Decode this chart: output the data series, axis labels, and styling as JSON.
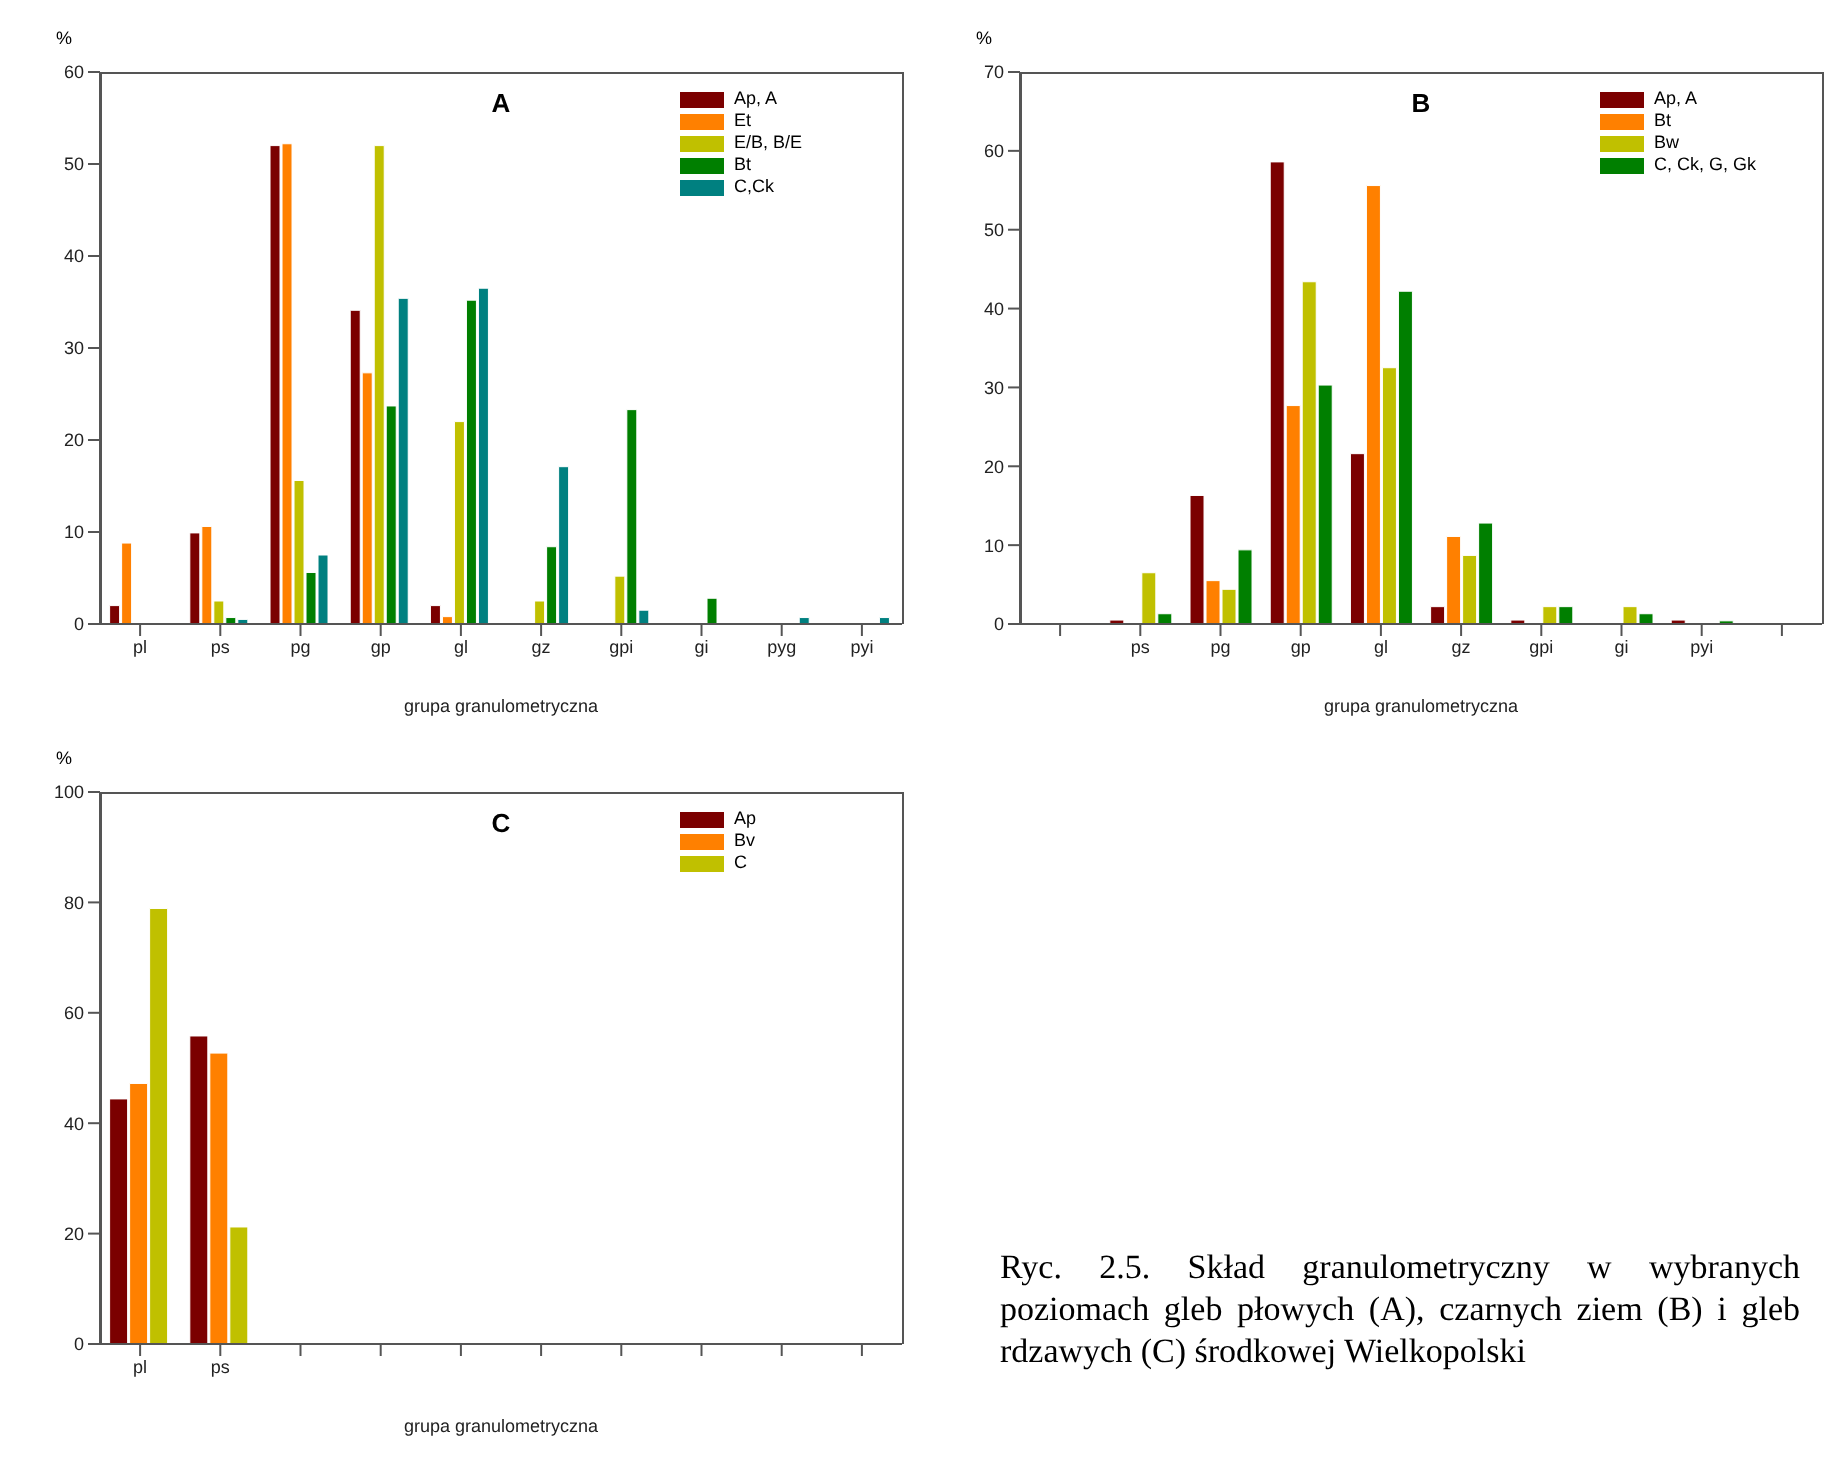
{
  "chart_data": [
    {
      "type": "bar",
      "title": "A",
      "xlabel": "grupa granulometryczna",
      "ylabel": "%",
      "categories": [
        "pl",
        "ps",
        "pg",
        "gp",
        "gl",
        "gz",
        "gpi",
        "gi",
        "pyg",
        "pyi"
      ],
      "ylim": [
        0,
        60
      ],
      "yticks": [
        0,
        10,
        20,
        30,
        40,
        50,
        60
      ],
      "legend": "top right",
      "series": [
        {
          "name": "Ap, A",
          "color": "#7b0000",
          "values": [
            2.0,
            9.9,
            52.0,
            34.1,
            2.0,
            0,
            0,
            0,
            0,
            0
          ]
        },
        {
          "name": "Et",
          "color": "#ff8000",
          "values": [
            8.8,
            10.6,
            52.2,
            27.3,
            0.8,
            0,
            0,
            0,
            0,
            0
          ]
        },
        {
          "name": "E/B, B/E",
          "color": "#c0c000",
          "values": [
            0,
            2.5,
            15.6,
            52.0,
            22.0,
            2.5,
            5.2,
            0,
            0,
            0
          ]
        },
        {
          "name": "Bt",
          "color": "#007f00",
          "values": [
            0,
            0.7,
            5.6,
            23.7,
            35.2,
            8.4,
            23.3,
            2.8,
            0,
            0
          ]
        },
        {
          "name": "C,Ck",
          "color": "#008080",
          "values": [
            0,
            0.5,
            7.5,
            35.4,
            36.5,
            17.1,
            1.5,
            0,
            0.7,
            0.7
          ]
        }
      ]
    },
    {
      "type": "bar",
      "title": "B",
      "xlabel": "grupa granulometryczna",
      "ylabel": "%",
      "categories": [
        null,
        "ps",
        "pg",
        "gp",
        "gl",
        "gz",
        "gpi",
        "gi",
        "pyi",
        null
      ],
      "ylim": [
        0,
        70
      ],
      "yticks": [
        0,
        10,
        20,
        30,
        40,
        50,
        60,
        70
      ],
      "legend": "top right",
      "series": [
        {
          "name": "Ap, A",
          "color": "#7b0000",
          "values": [
            0,
            0.5,
            16.3,
            58.6,
            21.6,
            2.2,
            0.5,
            0,
            0.5,
            0
          ]
        },
        {
          "name": "Bt",
          "color": "#ff8000",
          "values": [
            0,
            0,
            5.5,
            27.7,
            55.6,
            11.1,
            0,
            0,
            0,
            0
          ]
        },
        {
          "name": "Bw",
          "color": "#c0c000",
          "values": [
            0,
            6.5,
            4.4,
            43.4,
            32.5,
            8.7,
            2.2,
            2.2,
            0,
            0
          ]
        },
        {
          "name": "C, Ck, G, Gk",
          "color": "#007f00",
          "values": [
            0,
            1.3,
            9.4,
            30.3,
            42.2,
            12.8,
            2.2,
            1.3,
            0.4,
            0
          ]
        }
      ]
    },
    {
      "type": "bar",
      "title": "C",
      "xlabel": "grupa granulometryczna",
      "ylabel": "%",
      "categories": [
        "pl",
        "ps",
        null,
        null,
        null,
        null,
        null,
        null,
        null,
        null
      ],
      "ylim": [
        0,
        100
      ],
      "yticks": [
        0,
        20,
        40,
        60,
        80,
        100
      ],
      "legend": "top right",
      "annotations": [
        "Ryc. 2.5. Skład granulometryczny w wybranych poziomach gleb płowych (A), czarnych ziem (B) i gleb rdzawych (C) środkowej Wielkopolski"
      ],
      "series": [
        {
          "name": "Ap",
          "color": "#7b0000",
          "values": [
            44.4,
            55.8,
            0,
            0,
            0,
            0,
            0,
            0,
            0,
            0
          ]
        },
        {
          "name": "Bv",
          "color": "#ff8000",
          "values": [
            47.2,
            52.7,
            0,
            0,
            0,
            0,
            0,
            0,
            0,
            0
          ]
        },
        {
          "name": "C",
          "color": "#c0c000",
          "values": [
            78.9,
            21.2,
            0,
            0,
            0,
            0,
            0,
            0,
            0,
            0
          ]
        }
      ]
    }
  ]
}
